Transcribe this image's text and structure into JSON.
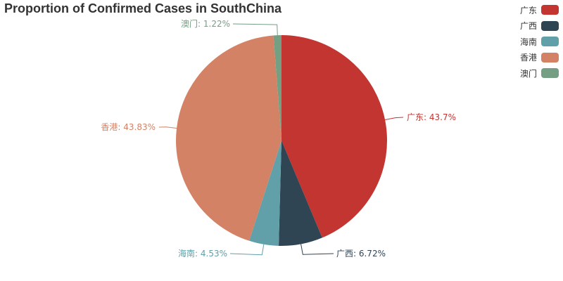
{
  "chart_data": {
    "type": "pie",
    "title": "Proportion of Confirmed Cases in SouthChina",
    "legend_position": "top-right",
    "slices": [
      {
        "name": "广东",
        "value": 43.7,
        "label": "广东: 43.7%",
        "color": "#c23531"
      },
      {
        "name": "广西",
        "value": 6.72,
        "label": "广西: 6.72%",
        "color": "#2f4554"
      },
      {
        "name": "海南",
        "value": 4.53,
        "label": "海南: 4.53%",
        "color": "#61a0a8"
      },
      {
        "name": "香港",
        "value": 43.83,
        "label": "香港: 43.83%",
        "color": "#d48265"
      },
      {
        "name": "澳门",
        "value": 1.22,
        "label": "澳门: 1.22%",
        "color": "#749f83"
      }
    ]
  }
}
